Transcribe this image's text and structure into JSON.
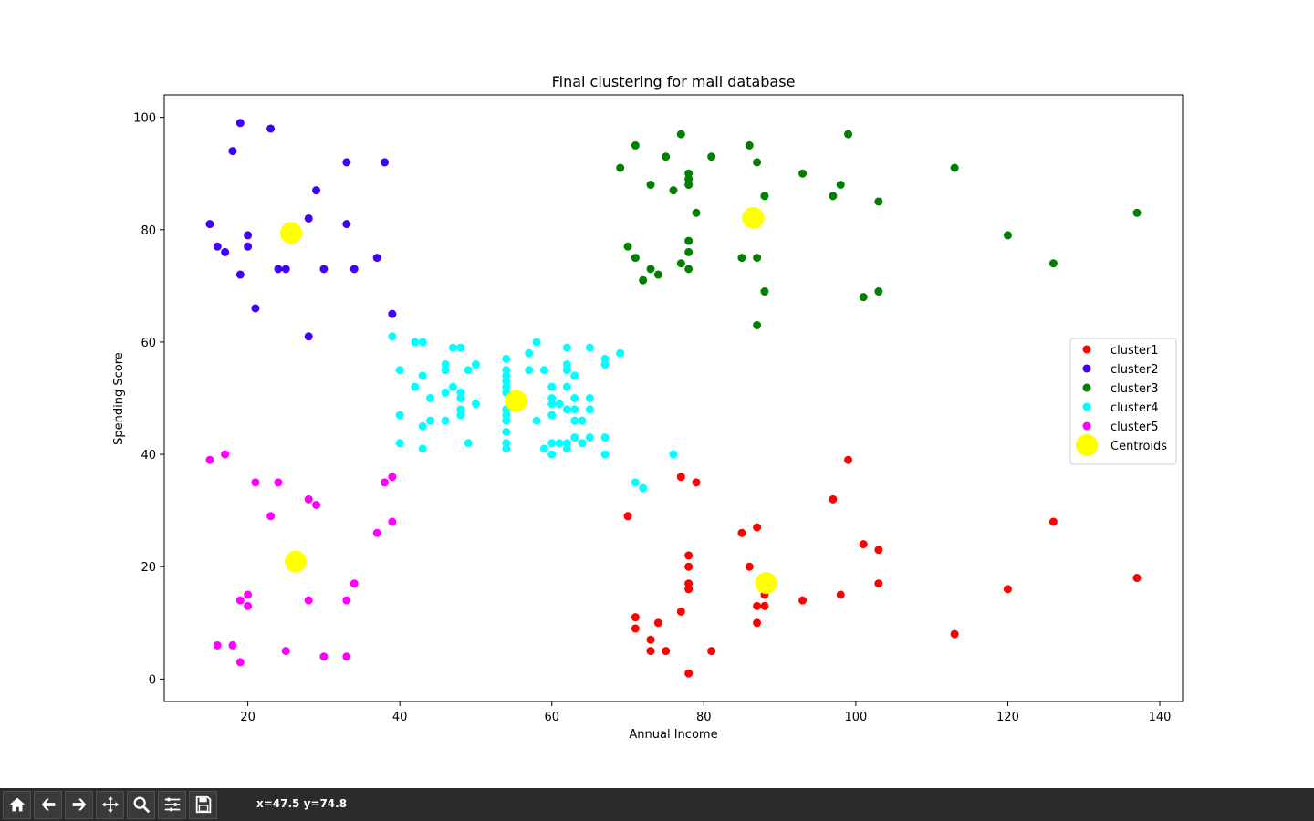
{
  "chart_data": {
    "type": "scatter",
    "title": "Final clustering for mall database",
    "xlabel": "Annual Income",
    "ylabel": "Spending Score",
    "xlim": [
      9,
      143
    ],
    "ylim": [
      -4,
      104
    ],
    "xticks": [
      20,
      40,
      60,
      80,
      100,
      120,
      140
    ],
    "yticks": [
      0,
      20,
      40,
      60,
      80,
      100
    ],
    "grid": false,
    "legend_position": "center-right",
    "series": [
      {
        "name": "cluster1",
        "color": "#ff0000",
        "points": [
          [
            70,
            29
          ],
          [
            71,
            11
          ],
          [
            71,
            9
          ],
          [
            73,
            7
          ],
          [
            73,
            5
          ],
          [
            74,
            10
          ],
          [
            75,
            5
          ],
          [
            77,
            36
          ],
          [
            77,
            12
          ],
          [
            78,
            22
          ],
          [
            78,
            20
          ],
          [
            78,
            17
          ],
          [
            78,
            16
          ],
          [
            78,
            1
          ],
          [
            79,
            35
          ],
          [
            81,
            5
          ],
          [
            85,
            26
          ],
          [
            86,
            20
          ],
          [
            87,
            27
          ],
          [
            87,
            13
          ],
          [
            87,
            10
          ],
          [
            88,
            15
          ],
          [
            88,
            13
          ],
          [
            93,
            14
          ],
          [
            97,
            32
          ],
          [
            98,
            15
          ],
          [
            99,
            39
          ],
          [
            101,
            24
          ],
          [
            103,
            23
          ],
          [
            103,
            17
          ],
          [
            113,
            8
          ],
          [
            120,
            16
          ],
          [
            126,
            28
          ],
          [
            137,
            18
          ]
        ]
      },
      {
        "name": "cluster2",
        "color": "#4000ff",
        "points": [
          [
            15,
            81
          ],
          [
            16,
            77
          ],
          [
            17,
            76
          ],
          [
            18,
            94
          ],
          [
            19,
            72
          ],
          [
            19,
            99
          ],
          [
            20,
            77
          ],
          [
            20,
            79
          ],
          [
            21,
            66
          ],
          [
            23,
            98
          ],
          [
            24,
            73
          ],
          [
            25,
            73
          ],
          [
            28,
            82
          ],
          [
            28,
            61
          ],
          [
            29,
            87
          ],
          [
            30,
            73
          ],
          [
            33,
            92
          ],
          [
            33,
            81
          ],
          [
            34,
            73
          ],
          [
            37,
            75
          ],
          [
            38,
            92
          ],
          [
            39,
            65
          ]
        ]
      },
      {
        "name": "cluster3",
        "color": "#008000",
        "points": [
          [
            69,
            91
          ],
          [
            70,
            77
          ],
          [
            71,
            95
          ],
          [
            71,
            75
          ],
          [
            72,
            71
          ],
          [
            73,
            88
          ],
          [
            73,
            73
          ],
          [
            74,
            72
          ],
          [
            75,
            93
          ],
          [
            76,
            87
          ],
          [
            77,
            97
          ],
          [
            77,
            74
          ],
          [
            78,
            90
          ],
          [
            78,
            89
          ],
          [
            78,
            88
          ],
          [
            78,
            78
          ],
          [
            78,
            76
          ],
          [
            78,
            73
          ],
          [
            79,
            83
          ],
          [
            81,
            93
          ],
          [
            85,
            75
          ],
          [
            86,
            95
          ],
          [
            87,
            92
          ],
          [
            87,
            75
          ],
          [
            87,
            63
          ],
          [
            88,
            86
          ],
          [
            88,
            69
          ],
          [
            93,
            90
          ],
          [
            97,
            86
          ],
          [
            98,
            88
          ],
          [
            99,
            97
          ],
          [
            101,
            68
          ],
          [
            103,
            85
          ],
          [
            103,
            69
          ],
          [
            113,
            91
          ],
          [
            120,
            79
          ],
          [
            126,
            74
          ],
          [
            137,
            83
          ]
        ]
      },
      {
        "name": "cluster4",
        "color": "#00ffff",
        "points": [
          [
            39,
            61
          ],
          [
            40,
            55
          ],
          [
            40,
            47
          ],
          [
            40,
            42
          ],
          [
            42,
            52
          ],
          [
            42,
            60
          ],
          [
            43,
            60
          ],
          [
            43,
            54
          ],
          [
            43,
            45
          ],
          [
            43,
            41
          ],
          [
            44,
            50
          ],
          [
            44,
            46
          ],
          [
            46,
            56
          ],
          [
            46,
            55
          ],
          [
            46,
            51
          ],
          [
            46,
            46
          ],
          [
            47,
            59
          ],
          [
            47,
            52
          ],
          [
            48,
            59
          ],
          [
            48,
            51
          ],
          [
            48,
            50
          ],
          [
            48,
            48
          ],
          [
            48,
            47
          ],
          [
            49,
            55
          ],
          [
            49,
            42
          ],
          [
            50,
            56
          ],
          [
            50,
            49
          ],
          [
            54,
            57
          ],
          [
            54,
            55
          ],
          [
            54,
            54
          ],
          [
            54,
            53
          ],
          [
            54,
            52
          ],
          [
            54,
            51
          ],
          [
            54,
            48
          ],
          [
            54,
            47
          ],
          [
            54,
            46
          ],
          [
            54,
            44
          ],
          [
            54,
            42
          ],
          [
            54,
            41
          ],
          [
            57,
            58
          ],
          [
            57,
            55
          ],
          [
            58,
            60
          ],
          [
            58,
            46
          ],
          [
            59,
            55
          ],
          [
            59,
            41
          ],
          [
            60,
            52
          ],
          [
            60,
            50
          ],
          [
            60,
            49
          ],
          [
            60,
            47
          ],
          [
            60,
            42
          ],
          [
            60,
            40
          ],
          [
            61,
            49
          ],
          [
            61,
            42
          ],
          [
            62,
            59
          ],
          [
            62,
            56
          ],
          [
            62,
            55
          ],
          [
            62,
            52
          ],
          [
            62,
            48
          ],
          [
            62,
            42
          ],
          [
            62,
            41
          ],
          [
            63,
            54
          ],
          [
            63,
            50
          ],
          [
            63,
            48
          ],
          [
            63,
            46
          ],
          [
            63,
            43
          ],
          [
            64,
            46
          ],
          [
            64,
            42
          ],
          [
            65,
            59
          ],
          [
            65,
            50
          ],
          [
            65,
            48
          ],
          [
            65,
            43
          ],
          [
            67,
            57
          ],
          [
            67,
            56
          ],
          [
            67,
            43
          ],
          [
            67,
            40
          ],
          [
            69,
            58
          ],
          [
            71,
            35
          ],
          [
            72,
            34
          ],
          [
            76,
            40
          ]
        ]
      },
      {
        "name": "cluster5",
        "color": "#ff00ff",
        "points": [
          [
            15,
            39
          ],
          [
            16,
            6
          ],
          [
            17,
            40
          ],
          [
            18,
            6
          ],
          [
            19,
            3
          ],
          [
            19,
            14
          ],
          [
            20,
            15
          ],
          [
            20,
            13
          ],
          [
            21,
            35
          ],
          [
            23,
            29
          ],
          [
            24,
            35
          ],
          [
            25,
            5
          ],
          [
            28,
            32
          ],
          [
            28,
            14
          ],
          [
            29,
            31
          ],
          [
            30,
            4
          ],
          [
            33,
            14
          ],
          [
            33,
            4
          ],
          [
            34,
            17
          ],
          [
            37,
            26
          ],
          [
            38,
            35
          ],
          [
            39,
            36
          ],
          [
            39,
            28
          ]
        ]
      },
      {
        "name": "Centroids",
        "color": "#ffff00",
        "points": [
          [
            25.7,
            79.4
          ],
          [
            26.3,
            20.9
          ],
          [
            55.3,
            49.5
          ],
          [
            86.5,
            82.1
          ],
          [
            88.2,
            17.1
          ]
        ]
      }
    ]
  },
  "toolbar": {
    "buttons": [
      "home-icon",
      "back-icon",
      "forward-icon",
      "pan-icon",
      "zoom-icon",
      "configure-icon",
      "save-icon"
    ],
    "coords": "x=47.5 y=74.8"
  }
}
